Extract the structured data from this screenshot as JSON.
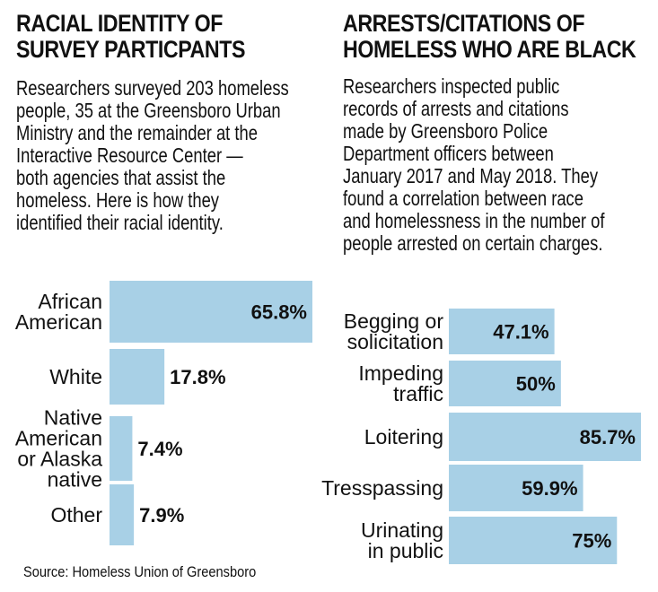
{
  "left": {
    "title_lines": [
      "RACIAL IDENTITY OF",
      "SURVEY PARTICPANTS"
    ],
    "description_lines": [
      "Researchers surveyed 203 homeless",
      "people, 35 at the Greensboro Urban",
      "Ministry and the remainder at the",
      "Interactive Resource Center —",
      "both agencies that assist the",
      "homeless. Here is how they",
      "identified their racial identity."
    ],
    "source": "Source: Homeless Union of Greensboro"
  },
  "right": {
    "title_lines": [
      "ARRESTS/CITATIONS OF",
      "HOMELESS WHO ARE BLACK"
    ],
    "description_lines": [
      "Researchers inspected public",
      "records of arrests and citations",
      "made by Greensboro Police",
      "Department officers between",
      "January 2017 and May 2018. They",
      "found a correlation between race",
      "and homelessness in the number of",
      "people arrested on certain charges."
    ]
  },
  "colors": {
    "bar": "#a8d0e6",
    "text": "#111111",
    "background": "#ffffff"
  },
  "chart_data": [
    {
      "type": "bar",
      "orientation": "horizontal",
      "title": "RACIAL IDENTITY OF SURVEY PARTICPANTS",
      "categories": [
        "African American",
        "White",
        "Native American or Alaska native",
        "Other"
      ],
      "category_label_lines": [
        [
          "African",
          "American"
        ],
        [
          "White"
        ],
        [
          "Native",
          "American",
          "or Alaska",
          "native"
        ],
        [
          "Other"
        ]
      ],
      "values": [
        65.8,
        17.8,
        7.4,
        7.9
      ],
      "value_labels": [
        "65.8%",
        "17.8%",
        "7.4%",
        "7.9%"
      ],
      "xlim": [
        0,
        65.8
      ],
      "grid": false
    },
    {
      "type": "bar",
      "orientation": "horizontal",
      "title": "ARRESTS/CITATIONS OF HOMELESS WHO ARE BLACK",
      "categories": [
        "Begging or solicitation",
        "Impeding traffic",
        "Loitering",
        "Tresspassing",
        "Urinating in public"
      ],
      "category_label_lines": [
        [
          "Begging or",
          "solicitation"
        ],
        [
          "Impeding",
          "traffic"
        ],
        [
          "Loitering"
        ],
        [
          "Tresspassing"
        ],
        [
          "Urinating",
          "in public"
        ]
      ],
      "values": [
        47.1,
        50,
        85.7,
        59.9,
        75
      ],
      "value_labels": [
        "47.1%",
        "50%",
        "85.7%",
        "59.9%",
        "75%"
      ],
      "xlim": [
        0,
        85.7
      ],
      "grid": false
    }
  ]
}
